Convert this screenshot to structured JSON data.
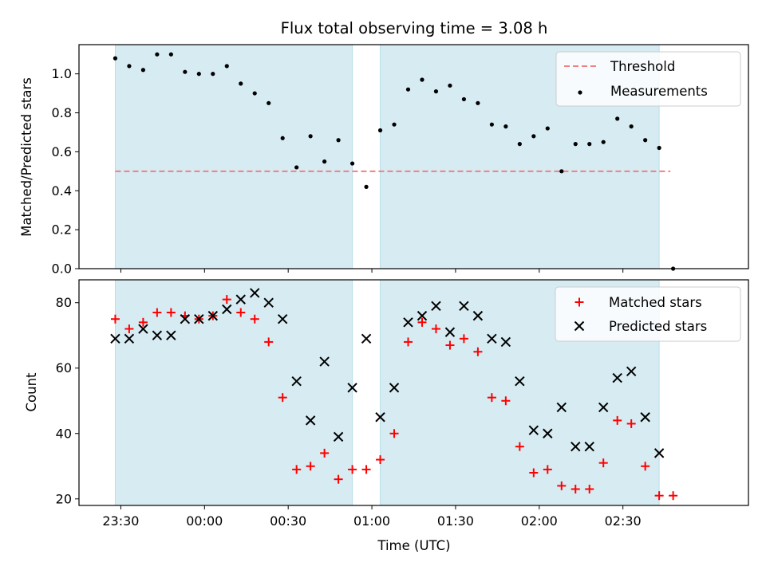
{
  "chart_data": [
    {
      "type": "scatter",
      "title": "Flux total observing time = 3.08 h",
      "xlabel": "",
      "ylabel": "Matched/Predicted stars",
      "ylim": [
        0,
        1.15
      ],
      "yticks": [
        0.0,
        0.2,
        0.4,
        0.6,
        0.8,
        1.0
      ],
      "ytick_labels": [
        "0.0",
        "0.2",
        "0.4",
        "0.6",
        "0.8",
        "1.0"
      ],
      "xlim_minutes": [
        -45,
        195
      ],
      "xticks_minutes": [
        -30,
        0,
        30,
        60,
        90,
        120,
        150
      ],
      "xtick_labels": [
        "23:30",
        "00:00",
        "00:30",
        "01:00",
        "01:30",
        "02:00",
        "02:30"
      ],
      "grid": false,
      "legend_position": "top-right",
      "observing_windows": [
        {
          "start": "23:28",
          "end": "00:53"
        },
        {
          "start": "01:03",
          "end": "02:43"
        }
      ],
      "threshold": {
        "name": "Threshold",
        "value": 0.5,
        "x_start": "23:28",
        "x_end": "02:47",
        "color": "#f08080",
        "style": "dashed"
      },
      "series": [
        {
          "name": "Measurements",
          "color": "#000000",
          "marker": "dot",
          "x": [
            "23:28",
            "23:33",
            "23:38",
            "23:43",
            "23:48",
            "23:53",
            "23:58",
            "00:03",
            "00:08",
            "00:13",
            "00:18",
            "00:23",
            "00:28",
            "00:33",
            "00:38",
            "00:43",
            "00:48",
            "00:53",
            "00:58",
            "01:03",
            "01:08",
            "01:13",
            "01:18",
            "01:23",
            "01:28",
            "01:33",
            "01:38",
            "01:43",
            "01:48",
            "01:53",
            "01:58",
            "02:03",
            "02:08",
            "02:13",
            "02:18",
            "02:23",
            "02:28",
            "02:33",
            "02:38",
            "02:43",
            "02:48"
          ],
          "values": [
            1.08,
            1.04,
            1.02,
            1.1,
            1.1,
            1.01,
            1.0,
            1.0,
            1.04,
            0.95,
            0.9,
            0.85,
            0.67,
            0.52,
            0.68,
            0.55,
            0.66,
            0.54,
            0.42,
            0.71,
            0.74,
            0.92,
            0.97,
            0.91,
            0.94,
            0.87,
            0.85,
            0.74,
            0.73,
            0.64,
            0.68,
            0.72,
            0.5,
            0.64,
            0.64,
            0.65,
            0.77,
            0.73,
            0.66,
            0.62,
            0.0
          ]
        }
      ]
    },
    {
      "type": "scatter",
      "title": "",
      "xlabel": "Time (UTC)",
      "ylabel": "Count",
      "ylim": [
        18,
        87
      ],
      "yticks": [
        20,
        40,
        60,
        80
      ],
      "ytick_labels": [
        "20",
        "40",
        "60",
        "80"
      ],
      "xlim_minutes": [
        -45,
        195
      ],
      "xticks_minutes": [
        -30,
        0,
        30,
        60,
        90,
        120,
        150
      ],
      "xtick_labels": [
        "23:30",
        "00:00",
        "00:30",
        "01:00",
        "01:30",
        "02:00",
        "02:30"
      ],
      "grid": false,
      "legend_position": "top-right",
      "observing_windows": [
        {
          "start": "23:28",
          "end": "00:53"
        },
        {
          "start": "01:03",
          "end": "02:43"
        }
      ],
      "series": [
        {
          "name": "Matched stars",
          "color": "#ff0000",
          "marker": "plus",
          "x": [
            "23:28",
            "23:33",
            "23:38",
            "23:43",
            "23:48",
            "23:53",
            "23:58",
            "00:03",
            "00:08",
            "00:13",
            "00:18",
            "00:23",
            "00:28",
            "00:33",
            "00:38",
            "00:43",
            "00:48",
            "00:53",
            "00:58",
            "01:03",
            "01:08",
            "01:13",
            "01:18",
            "01:23",
            "01:28",
            "01:33",
            "01:38",
            "01:43",
            "01:48",
            "01:53",
            "01:58",
            "02:03",
            "02:08",
            "02:13",
            "02:18",
            "02:23",
            "02:28",
            "02:33",
            "02:38",
            "02:43",
            "02:48"
          ],
          "values": [
            75,
            72,
            74,
            77,
            77,
            76,
            75,
            76,
            81,
            77,
            75,
            68,
            51,
            29,
            30,
            34,
            26,
            29,
            29,
            32,
            40,
            68,
            74,
            72,
            67,
            69,
            65,
            51,
            50,
            36,
            28,
            29,
            24,
            23,
            23,
            31,
            44,
            43,
            30,
            21,
            21
          ]
        },
        {
          "name": "Predicted stars",
          "color": "#000000",
          "marker": "x",
          "x": [
            "23:28",
            "23:33",
            "23:38",
            "23:43",
            "23:48",
            "23:53",
            "23:58",
            "00:03",
            "00:08",
            "00:13",
            "00:18",
            "00:23",
            "00:28",
            "00:33",
            "00:38",
            "00:43",
            "00:48",
            "00:53",
            "00:58",
            "01:03",
            "01:08",
            "01:13",
            "01:18",
            "01:23",
            "01:28",
            "01:33",
            "01:38",
            "01:43",
            "01:48",
            "01:53",
            "01:58",
            "02:03",
            "02:08",
            "02:13",
            "02:18",
            "02:23",
            "02:28",
            "02:33",
            "02:38",
            "02:43"
          ],
          "values": [
            69,
            69,
            72,
            70,
            70,
            75,
            75,
            76,
            78,
            81,
            83,
            80,
            75,
            56,
            44,
            62,
            39,
            54,
            69,
            45,
            54,
            74,
            76,
            79,
            71,
            79,
            76,
            69,
            68,
            56,
            41,
            40,
            48,
            36,
            36,
            48,
            57,
            59,
            45,
            34
          ]
        }
      ]
    }
  ]
}
